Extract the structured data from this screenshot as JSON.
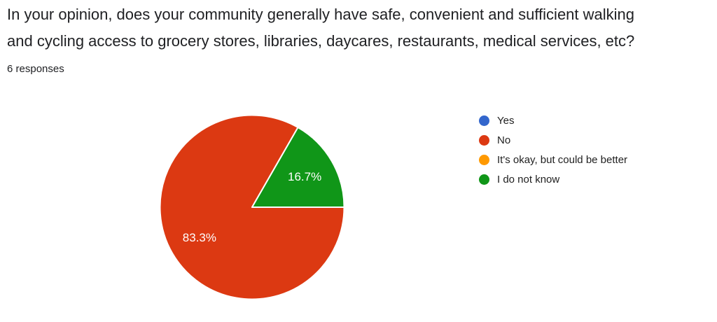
{
  "header": {
    "title_lines": [
      "In your opinion, does your community generally have safe, convenient and sufficient walking",
      "and cycling access to grocery stores, libraries, daycares, restaurants, medical services, etc?"
    ],
    "responses_label": "6 responses"
  },
  "chart_data": {
    "type": "pie",
    "title": "In your opinion, does your community generally have safe, convenient and sufficient walking and cycling access to grocery stores, libraries, daycares, restaurants, medical services, etc?",
    "subtitle": "6 responses",
    "categories": [
      "Yes",
      "No",
      "It's okay, but could be better",
      "I do not know"
    ],
    "percents": [
      0,
      83.3,
      0,
      16.7
    ],
    "pct_labels": [
      "",
      "83.3%",
      "",
      "16.7%"
    ],
    "colors": [
      "#3366CC",
      "#DC3912",
      "#FF9900",
      "#109618"
    ],
    "legend_position": "right",
    "start_angle_deg": 90,
    "direction": "clockwise",
    "slice_border_color": "#FFFFFF",
    "label_color": "#FFFFFF"
  },
  "colors": {
    "background": "#FFFFFF",
    "title_text": "#202124",
    "legend_text": "#212121"
  }
}
